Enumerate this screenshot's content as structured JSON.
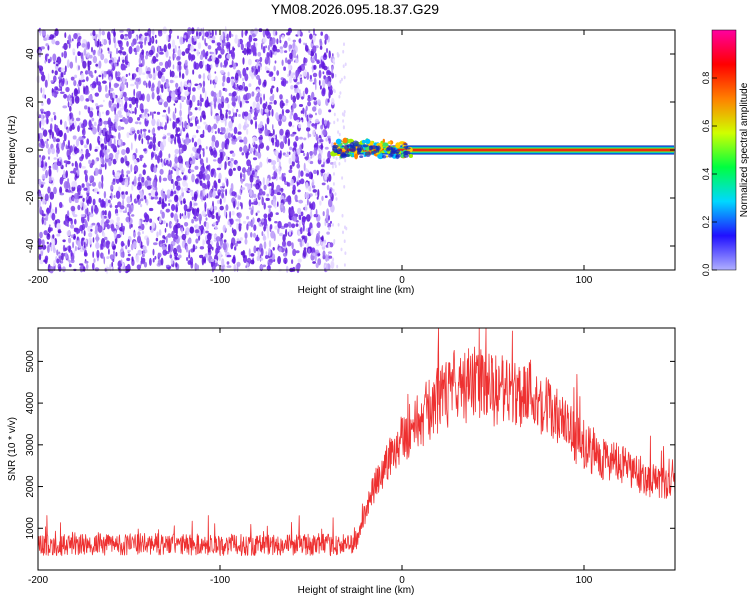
{
  "page_title": "YM08.2026.095.18.37.G29",
  "chart_data": [
    {
      "type": "heatmap",
      "xlabel": "Height of straight line (km)",
      "ylabel": "Frequency (Hz)",
      "xlim": [
        -200,
        150
      ],
      "ylim": [
        -50,
        50
      ],
      "x_ticks": [
        -200,
        -100,
        0,
        100
      ],
      "y_ticks": [
        -40,
        -20,
        0,
        20,
        40
      ],
      "colorbar": {
        "label": "Normalized spectral amplitude",
        "range": [
          0,
          1
        ],
        "ticks": [
          0.0,
          0.2,
          0.4,
          0.6,
          0.8
        ],
        "tick_labels": [
          "0.0",
          "0.2",
          "0.4",
          "0.6",
          "0.8"
        ],
        "colormap": [
          "#b0b0ff",
          "#2010ff",
          "#00d8ff",
          "#00ff40",
          "#d0ff00",
          "#ff8000",
          "#ff0000",
          "#ff00a0"
        ]
      },
      "regions": [
        {
          "description": "noise",
          "x_range": [
            -200,
            -38
          ],
          "y_range": [
            -50,
            50
          ],
          "amplitude_range": [
            0.0,
            0.2
          ],
          "color": "#6a22e8"
        },
        {
          "description": "onset burst",
          "x_range": [
            -38,
            5
          ],
          "y_range": [
            -3,
            4
          ],
          "amplitude_range": [
            0.3,
            0.9
          ]
        },
        {
          "description": "carrier line",
          "x_range": [
            -38,
            150
          ],
          "y_range": [
            -2,
            2
          ],
          "center_frequency": 0,
          "amplitude_range": [
            0.3,
            1.0
          ]
        }
      ]
    },
    {
      "type": "line",
      "xlabel": "Height of straight line (km)",
      "ylabel": "SNR (10 * v/v)",
      "xlim": [
        -200,
        150
      ],
      "ylim": [
        0,
        5800
      ],
      "x_ticks": [
        -200,
        -100,
        0,
        100
      ],
      "y_ticks": [
        1000,
        2000,
        3000,
        4000,
        5000
      ],
      "line_color": "#ee3030",
      "series": [
        {
          "x": [
            -200,
            -180,
            -160,
            -140,
            -120,
            -100,
            -80,
            -60,
            -40,
            -30,
            -25,
            -20,
            -15,
            -10,
            -5,
            0,
            10,
            20,
            30,
            40,
            50,
            60,
            70,
            80,
            90,
            100,
            110,
            120,
            130,
            140,
            150
          ],
          "values": [
            600,
            600,
            610,
            620,
            610,
            600,
            600,
            610,
            600,
            600,
            700,
            1400,
            2000,
            2400,
            2900,
            3200,
            3600,
            4100,
            4300,
            4500,
            4300,
            4200,
            4300,
            3900,
            3400,
            3000,
            2700,
            2500,
            2300,
            2100,
            2000
          ]
        }
      ]
    }
  ]
}
